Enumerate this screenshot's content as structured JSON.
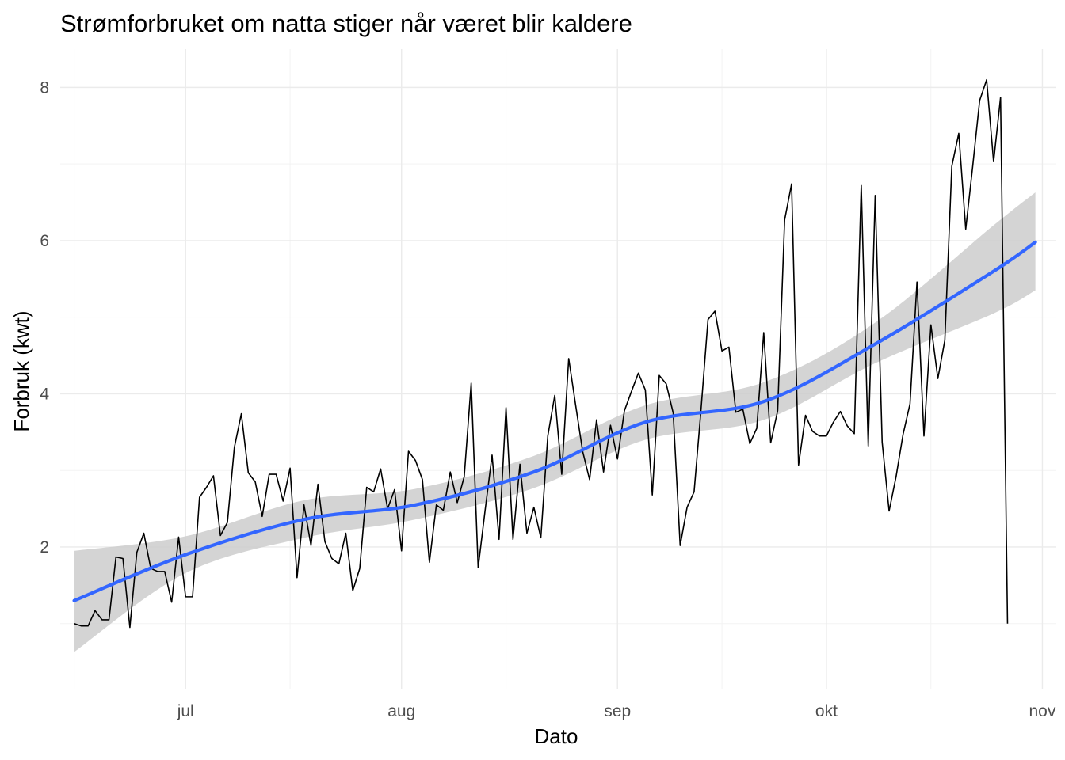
{
  "chart_data": {
    "type": "line",
    "title": "Strømforbruket om natta stiger når været blir kaldere",
    "xlabel": "Dato",
    "ylabel": "Forbruk (kwt)",
    "x_type": "date",
    "xlim": [
      "2023-06-13",
      "2023-11-03"
    ],
    "ylim": [
      0.15,
      8.5
    ],
    "x_ticks": [
      {
        "date": "2023-07-01",
        "label": "jul"
      },
      {
        "date": "2023-08-01",
        "label": "aug"
      },
      {
        "date": "2023-09-01",
        "label": "sep"
      },
      {
        "date": "2023-10-01",
        "label": "okt"
      },
      {
        "date": "2023-11-01",
        "label": "nov"
      }
    ],
    "x_minor_ticks": [
      "2023-06-15",
      "2023-07-16",
      "2023-08-16",
      "2023-09-16",
      "2023-10-16"
    ],
    "y_ticks": [
      2,
      4,
      6,
      8
    ],
    "y_minor_ticks": [
      1,
      3,
      5,
      7
    ],
    "grid": true,
    "colors": {
      "line": "#000000",
      "smooth": "#3366ff",
      "band": "#cccccc"
    },
    "series": [
      {
        "type": "line",
        "start_date": "2023-06-15",
        "step_days": 1,
        "values": [
          1.0,
          0.97,
          0.97,
          1.17,
          1.05,
          1.05,
          1.87,
          1.85,
          0.95,
          1.93,
          2.18,
          1.72,
          1.68,
          1.68,
          1.28,
          2.13,
          1.35,
          1.35,
          2.65,
          2.78,
          2.93,
          2.15,
          2.32,
          3.3,
          3.74,
          2.97,
          2.85,
          2.4,
          2.95,
          2.95,
          2.6,
          3.03,
          1.6,
          2.55,
          2.02,
          2.82,
          2.07,
          1.85,
          1.78,
          2.18,
          1.43,
          1.72,
          2.78,
          2.72,
          3.02,
          2.5,
          2.75,
          1.95,
          3.25,
          3.13,
          2.88,
          1.8,
          2.55,
          2.48,
          2.98,
          2.58,
          2.92,
          4.14,
          1.73,
          2.48,
          3.2,
          2.1,
          3.82,
          2.1,
          3.08,
          2.18,
          2.52,
          2.12,
          3.45,
          3.98,
          2.95,
          4.46,
          3.85,
          3.25,
          2.88,
          3.66,
          2.98,
          3.59,
          3.15,
          3.78,
          4.03,
          4.27,
          4.05,
          2.68,
          4.24,
          4.13,
          3.75,
          2.02,
          2.52,
          2.72,
          3.8,
          4.97,
          5.08,
          4.56,
          4.61,
          3.76,
          3.8,
          3.35,
          3.55,
          4.8,
          3.36,
          3.78,
          6.27,
          6.74,
          3.07,
          3.72,
          3.51,
          3.45,
          3.45,
          3.63,
          3.77,
          3.58,
          3.48,
          6.72,
          3.32,
          6.59,
          3.37,
          2.47,
          2.92,
          3.47,
          3.87,
          5.46,
          3.45,
          4.9,
          4.2,
          4.7,
          6.97,
          7.4,
          6.15,
          6.97,
          7.83,
          8.1,
          7.03,
          7.87,
          1.0
        ]
      },
      {
        "type": "smooth",
        "x_days_from_start": [
          0,
          16,
          33,
          49,
          66,
          82,
          99,
          115,
          132,
          138
        ],
        "values": [
          1.3,
          1.9,
          2.36,
          2.55,
          2.98,
          3.63,
          3.9,
          4.65,
          5.6,
          5.98
        ],
        "band_low": [
          0.63,
          1.66,
          2.12,
          2.36,
          2.77,
          3.4,
          3.66,
          4.4,
          5.05,
          5.35
        ],
        "band_high": [
          1.95,
          2.14,
          2.61,
          2.76,
          3.19,
          3.85,
          4.15,
          4.93,
          6.2,
          6.63
        ]
      }
    ]
  }
}
